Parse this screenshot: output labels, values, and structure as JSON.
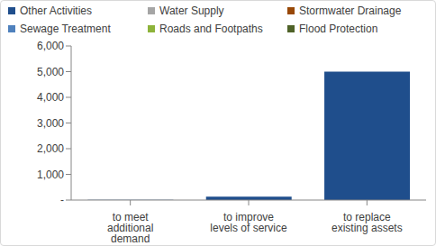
{
  "chart_data": {
    "type": "bar",
    "stacked": true,
    "legend": "top",
    "grid": false,
    "categories": [
      "to meet additional demand",
      "to improve levels of service",
      "to replace existing assets"
    ],
    "series": [
      {
        "name": "Other Activities",
        "color": "#1F4E8C",
        "values": [
          10,
          130,
          5000
        ]
      },
      {
        "name": "Water Supply",
        "color": "#A5A5A5",
        "values": [
          0,
          0,
          0
        ]
      },
      {
        "name": "Stormwater Drainage",
        "color": "#984807",
        "values": [
          0,
          0,
          0
        ]
      },
      {
        "name": "Sewage Treatment",
        "color": "#4F81BD",
        "values": [
          0,
          0,
          0
        ]
      },
      {
        "name": "Roads and Footpaths",
        "color": "#8DB33A",
        "values": [
          0,
          0,
          0
        ]
      },
      {
        "name": "Flood Protection",
        "color": "#4F6228",
        "values": [
          0,
          0,
          0
        ]
      }
    ],
    "ylim": [
      0,
      6000
    ],
    "yticks": [
      {
        "value": 0,
        "label": "-"
      },
      {
        "value": 1000,
        "label": "1,000"
      },
      {
        "value": 2000,
        "label": "2,000"
      },
      {
        "value": 3000,
        "label": "3,000"
      },
      {
        "value": 4000,
        "label": "4,000"
      },
      {
        "value": 5000,
        "label": "5,000"
      },
      {
        "value": 6000,
        "label": "6,000"
      }
    ]
  }
}
